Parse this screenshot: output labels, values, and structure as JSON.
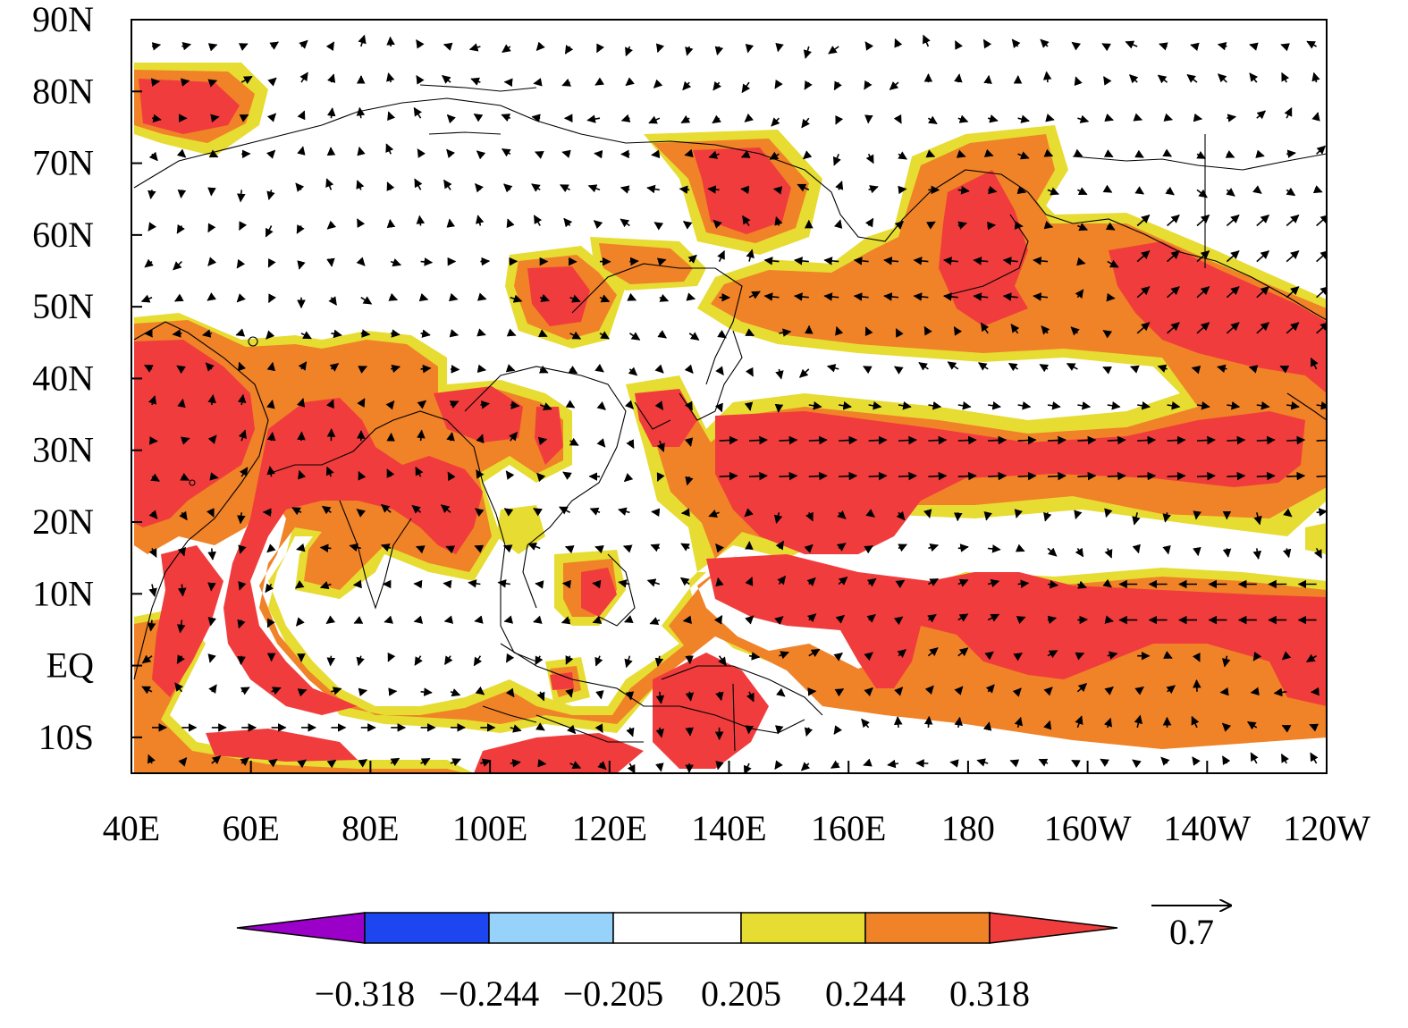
{
  "map": {
    "lat_axis": {
      "labels": [
        "90N",
        "80N",
        "70N",
        "60N",
        "50N",
        "40N",
        "30N",
        "20N",
        "10N",
        "EQ",
        "10S"
      ],
      "values": [
        90,
        80,
        70,
        60,
        50,
        40,
        30,
        20,
        10,
        0,
        -10
      ],
      "range": [
        -15,
        90
      ]
    },
    "lon_axis": {
      "labels": [
        "40E",
        "60E",
        "80E",
        "100E",
        "120E",
        "140E",
        "160E",
        "180",
        "160W",
        "140W",
        "120W"
      ],
      "values": [
        40,
        60,
        80,
        100,
        120,
        140,
        160,
        180,
        200,
        220,
        240
      ],
      "range": [
        40,
        240
      ]
    },
    "vector_reference": {
      "label": "0.7",
      "magnitude": 0.7
    },
    "colorbar": {
      "levels": [
        "−0.318",
        "−0.244",
        "−0.205",
        "0.205",
        "0.244",
        "0.318"
      ],
      "colors": [
        "#9b00c8",
        "#1e46f0",
        "#96d2fa",
        "#ffffff",
        "#e6dc32",
        "#f08228",
        "#f03c3c"
      ]
    }
  }
}
